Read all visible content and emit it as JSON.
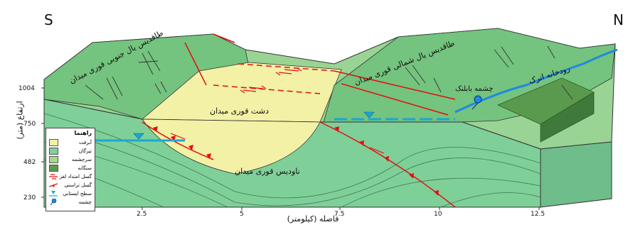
{
  "directions": {
    "left": "S",
    "right": "N"
  },
  "axes": {
    "y_label": "ارتفاع (متر)",
    "y_ticks": [
      "1004",
      "750",
      "482",
      "230"
    ],
    "x_label": "فاصله (کیلومتر)",
    "x_ticks": [
      "2.5",
      "5",
      "7.5",
      "10",
      "12.5"
    ]
  },
  "labels": {
    "south_anticline": "طاقدیس یال جنوبی قوری میدان",
    "north_anticline": "طاقدیس یال شمالی قوری میدان",
    "plain": "دشت قوری میدان",
    "syncline": "ناودیس قوری میدان",
    "river": "رودخانه اترک",
    "spring": "چشمه بابلنک"
  },
  "legend": {
    "title": "راهنما",
    "items": [
      {
        "label": "آبرفت",
        "color": "#f2f1a6",
        "kind": "box"
      },
      {
        "label": "تیرگان",
        "color": "#7fcf99",
        "kind": "box"
      },
      {
        "label": "سرچشمه",
        "color": "#a6d98a",
        "kind": "box"
      },
      {
        "label": "سنگانه",
        "color": "#5a9a4e",
        "kind": "box"
      },
      {
        "label": "گسل امتداد لغز",
        "kind": "strike-slip-fault-icon"
      },
      {
        "label": "گسل تراستی",
        "kind": "thrust-fault-icon"
      },
      {
        "label": "سطح ایستابی",
        "kind": "water-table-icon"
      },
      {
        "label": "چشمه",
        "kind": "spring-icon"
      }
    ]
  },
  "colors": {
    "alluvium": "#f2f1a6",
    "tirgan": "#7fcf99",
    "sarcheshmeh": "#a6d98a",
    "sanganeh": "#5a9a4e",
    "fault": "#e01010",
    "water": "#1aa7d8",
    "river": "#1e88e5"
  }
}
